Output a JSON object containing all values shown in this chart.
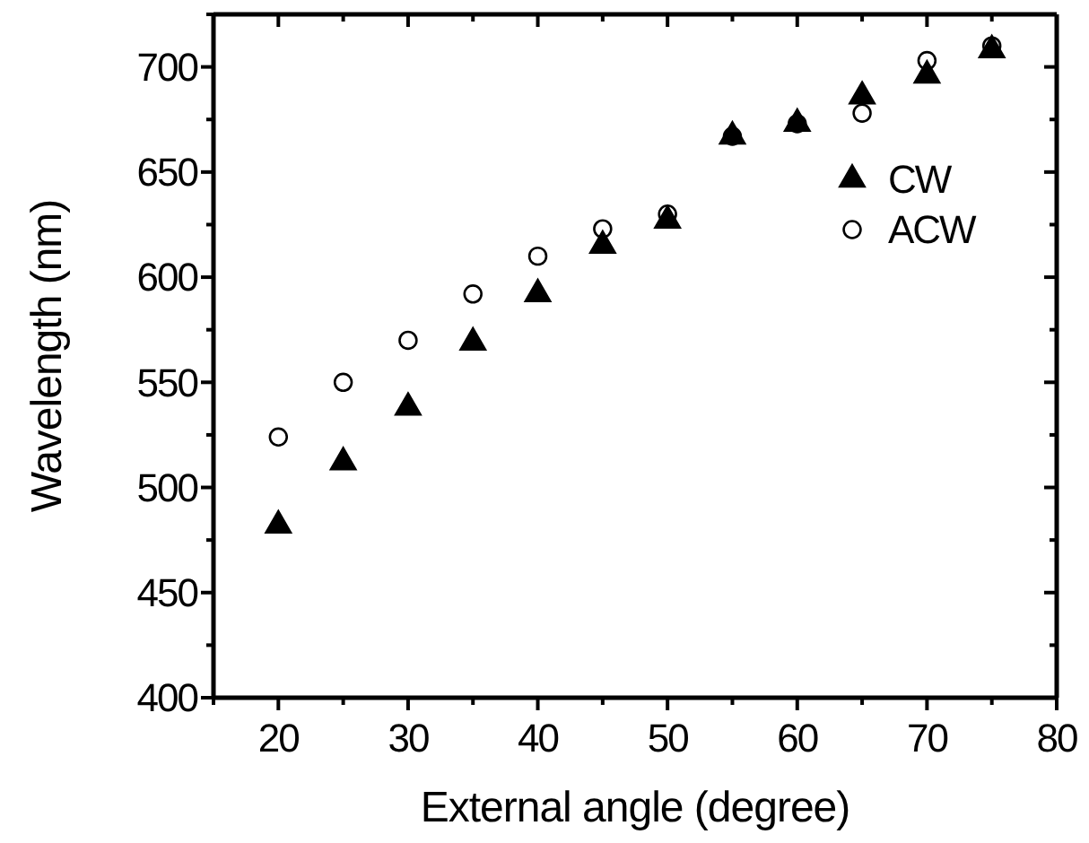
{
  "chart_data": {
    "type": "scatter",
    "xlabel": "External angle (degree)",
    "ylabel": "Wavelength (nm)",
    "x": [
      20,
      25,
      30,
      35,
      40,
      45,
      50,
      55,
      60,
      65,
      70,
      75
    ],
    "series": [
      {
        "name": "CW",
        "color": "#000000",
        "marker": "triangle",
        "values": [
          482,
          512,
          538,
          569,
          592,
          615,
          627,
          667,
          673,
          686,
          696,
          708
        ]
      },
      {
        "name": "ACW",
        "color": "#000000",
        "marker": "circle",
        "values": [
          524,
          550,
          570,
          592,
          610,
          623,
          630,
          667,
          673,
          678,
          703,
          710
        ]
      }
    ],
    "xlim": [
      15,
      80
    ],
    "ylim": [
      400,
      725
    ],
    "xticks": [
      {
        "value": 15,
        "label": null
      },
      20,
      {
        "value": 25,
        "label": null
      },
      30,
      {
        "value": 35,
        "label": null
      },
      40,
      {
        "value": 45,
        "label": null
      },
      50,
      {
        "value": 55,
        "label": null
      },
      60,
      {
        "value": 65,
        "label": null
      },
      70,
      {
        "value": 75,
        "label": null
      },
      80
    ],
    "yticks": [
      400,
      {
        "value": 425,
        "label": null
      },
      450,
      {
        "value": 475,
        "label": null
      },
      500,
      {
        "value": 525,
        "label": null
      },
      550,
      {
        "value": 575,
        "label": null
      },
      600,
      {
        "value": 625,
        "label": null
      },
      650,
      {
        "value": 675,
        "label": null
      },
      700,
      {
        "value": 725,
        "label": null
      }
    ],
    "grid": false,
    "legend": "right"
  }
}
